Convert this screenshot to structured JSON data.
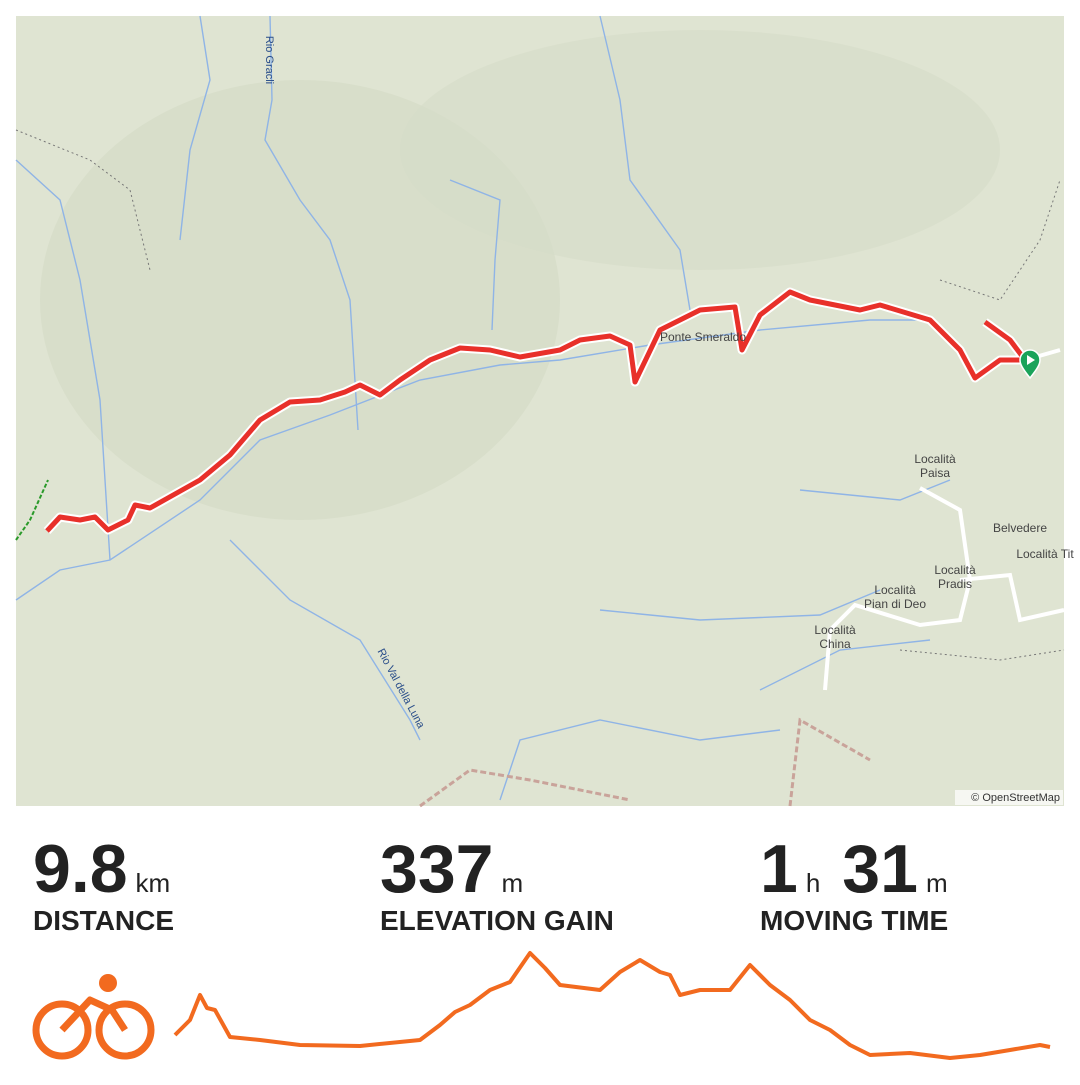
{
  "map": {
    "attribution": "© OpenStreetMap",
    "streams": [
      "Rio Gracli",
      "Rio Val della Luna"
    ],
    "places": [
      {
        "lines": [
          "Ponte Smeraldo"
        ]
      },
      {
        "lines": [
          "Località",
          "Paisa"
        ]
      },
      {
        "lines": [
          "Belvedere"
        ]
      },
      {
        "lines": [
          "Località Tit"
        ]
      },
      {
        "lines": [
          "Località",
          "Pradis"
        ]
      },
      {
        "lines": [
          "Località",
          "Pian di Deo"
        ]
      },
      {
        "lines": [
          "Località",
          "China"
        ]
      }
    ]
  },
  "stats": [
    {
      "value": 9.8,
      "unit": "km",
      "label": "DISTANCE"
    },
    {
      "value": 337,
      "unit": "m",
      "label": "ELEVATION GAIN"
    },
    {
      "value": 1,
      "unit": "h",
      "value2": 31,
      "unit2": "m",
      "label": "MOVING TIME"
    }
  ]
}
